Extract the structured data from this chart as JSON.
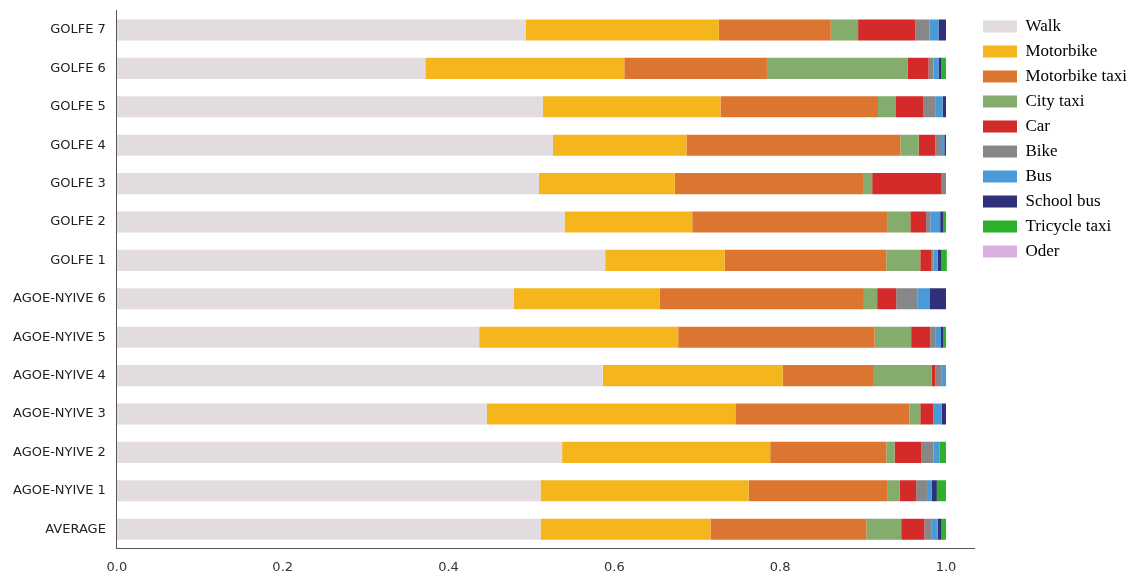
{
  "chart_data": {
    "type": "bar",
    "orientation": "horizontal",
    "stacked": true,
    "grid": false,
    "legend": "right",
    "categories": [
      "GOLFE 7",
      "GOLFE 6",
      "GOLFE 5",
      "GOLFE 4",
      "GOLFE 3",
      "GOLFE 2",
      "GOLFE 1",
      "AGOE-NYIVE 6",
      "AGOE-NYIVE 5",
      "AGOE-NYIVE 4",
      "AGOE-NYIVE 3",
      "AGOE-NYIVE 2",
      "AGOE-NYIVE 1",
      "AVERAGE"
    ],
    "xlim": [
      0,
      1.035
    ],
    "xticks": [
      {
        "value": 0,
        "label": "0.0"
      },
      {
        "value": 0.2,
        "label": "0.2"
      },
      {
        "value": 0.4,
        "label": "0.4"
      },
      {
        "value": 0.6,
        "label": "0.6"
      },
      {
        "value": 0.8,
        "label": "0.8"
      },
      {
        "value": 1,
        "label": "1.0"
      }
    ],
    "series": [
      {
        "name": "Walk",
        "color": "#e2dce0",
        "values": [
          0.493,
          0.372,
          0.514,
          0.526,
          0.509,
          0.54,
          0.589,
          0.479,
          0.437,
          0.586,
          0.446,
          0.537,
          0.511,
          0.511
        ]
      },
      {
        "name": "Motorbike",
        "color": "#f5b51c",
        "values": [
          0.233,
          0.24,
          0.214,
          0.161,
          0.164,
          0.154,
          0.144,
          0.176,
          0.24,
          0.217,
          0.3,
          0.251,
          0.251,
          0.205
        ]
      },
      {
        "name": "Motorbike taxi",
        "color": "#dc7530",
        "values": [
          0.135,
          0.172,
          0.19,
          0.258,
          0.227,
          0.235,
          0.195,
          0.246,
          0.237,
          0.109,
          0.21,
          0.14,
          0.167,
          0.188
        ]
      },
      {
        "name": "City taxi",
        "color": "#84ac6c",
        "values": [
          0.033,
          0.17,
          0.021,
          0.022,
          0.011,
          0.028,
          0.041,
          0.016,
          0.044,
          0.071,
          0.013,
          0.01,
          0.015,
          0.042
        ]
      },
      {
        "name": "Car",
        "color": "#d42a2a",
        "values": [
          0.069,
          0.025,
          0.034,
          0.02,
          0.083,
          0.019,
          0.013,
          0.023,
          0.023,
          0.004,
          0.016,
          0.032,
          0.02,
          0.028
        ]
      },
      {
        "name": "Bike",
        "color": "#878787",
        "values": [
          0.017,
          0.006,
          0.014,
          0.007,
          0.006,
          0.005,
          0.003,
          0.026,
          0.006,
          0.008,
          0,
          0.015,
          0.013,
          0.009
        ]
      },
      {
        "name": "Bus",
        "color": "#4b9ad8",
        "values": [
          0.011,
          0.006,
          0.009,
          0.004,
          0,
          0.012,
          0.005,
          0.014,
          0.007,
          0.005,
          0.01,
          0.007,
          0.006,
          0.007
        ]
      },
      {
        "name": "School bus",
        "color": "#2e3079",
        "values": [
          0.009,
          0.003,
          0.004,
          0.002,
          0,
          0.004,
          0.004,
          0.02,
          0.003,
          0,
          0.005,
          0,
          0.006,
          0.004
        ]
      },
      {
        "name": "Tricycle taxi",
        "color": "#2db12a",
        "values": [
          0,
          0.006,
          0,
          0,
          0,
          0.003,
          0.007,
          0,
          0.003,
          0,
          0,
          0.008,
          0.011,
          0.006
        ]
      },
      {
        "name": "Oder",
        "color": "#d9b0e0",
        "values": [
          0,
          0,
          0,
          0,
          0,
          0,
          0,
          0,
          0,
          0,
          0,
          0,
          0,
          0
        ]
      }
    ]
  }
}
